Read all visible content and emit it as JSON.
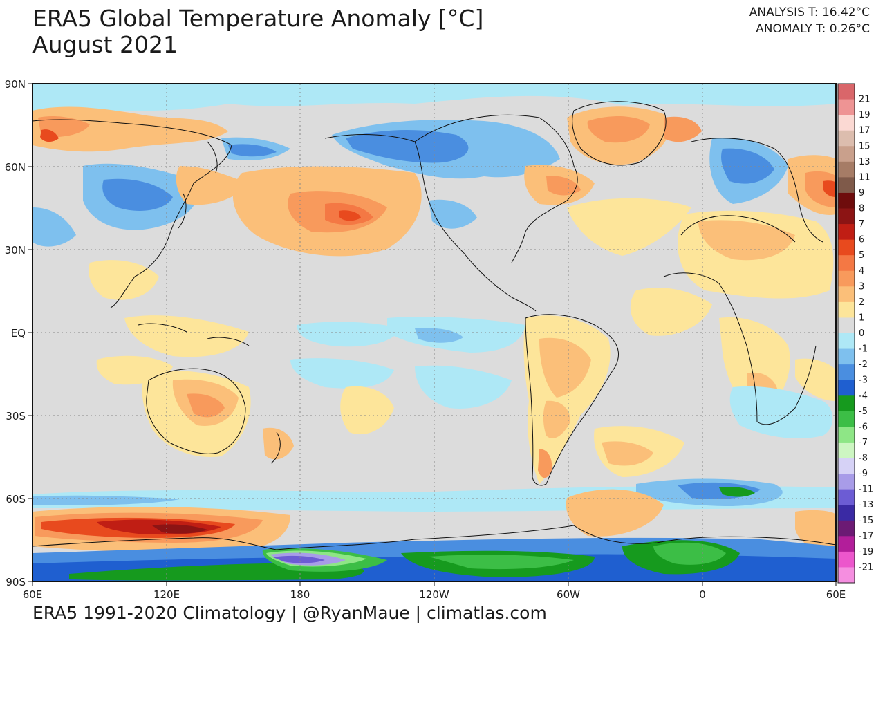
{
  "header": {
    "title_line1": "ERA5 Global Temperature Anomaly [°C]",
    "title_line2": "August 2021",
    "analysis_label": "ANALYSIS T: 16.42°C",
    "anomaly_label": "ANOMALY T: 0.26°C"
  },
  "map": {
    "latitude_labels": [
      "90N",
      "60N",
      "30N",
      "EQ",
      "30S",
      "60S",
      "90S"
    ],
    "longitude_labels": [
      "60E",
      "120E",
      "180",
      "120W",
      "60W",
      "0",
      "60E"
    ],
    "background_color": "#dcdcdc",
    "grid": "dotted",
    "central_longitude": "150W"
  },
  "colorbar": {
    "ticks": [
      {
        "label": "21",
        "color": "#d9666a"
      },
      {
        "label": "19",
        "color": "#ee9494"
      },
      {
        "label": "17",
        "color": "#fbd9d3"
      },
      {
        "label": "15",
        "color": "#dcbdae"
      },
      {
        "label": "13",
        "color": "#c9a08c"
      },
      {
        "label": "11",
        "color": "#a67c66"
      },
      {
        "label": "9",
        "color": "#7f5a4a"
      },
      {
        "label": "8",
        "color": "#6e0c0c"
      },
      {
        "label": "7",
        "color": "#8c1414"
      },
      {
        "label": "6",
        "color": "#c01e14"
      },
      {
        "label": "5",
        "color": "#e84a1e"
      },
      {
        "label": "4",
        "color": "#f47844"
      },
      {
        "label": "3",
        "color": "#f89a5c"
      },
      {
        "label": "2",
        "color": "#fbbf79"
      },
      {
        "label": "1",
        "color": "#fde59a"
      },
      {
        "label": "0",
        "color": "#dcdcdc"
      },
      {
        "label": "-1",
        "color": "#aee8f6"
      },
      {
        "label": "-2",
        "color": "#7ec0ee"
      },
      {
        "label": "-3",
        "color": "#4a8ee0"
      },
      {
        "label": "-4",
        "color": "#1f5fd0"
      },
      {
        "label": "-5",
        "color": "#169a1e"
      },
      {
        "label": "-6",
        "color": "#3cbe46"
      },
      {
        "label": "-7",
        "color": "#8ee686"
      },
      {
        "label": "-8",
        "color": "#cdf6c2"
      },
      {
        "label": "-9",
        "color": "#d6d2f6"
      },
      {
        "label": "-11",
        "color": "#a89ce8"
      },
      {
        "label": "-13",
        "color": "#6c5cd4"
      },
      {
        "label": "-15",
        "color": "#3a2aa4"
      },
      {
        "label": "-17",
        "color": "#6c1a74"
      },
      {
        "label": "-19",
        "color": "#b21e9a"
      },
      {
        "label": "-21",
        "color": "#ec56cc"
      }
    ],
    "bottom_color": "#f58ee0"
  },
  "footer": {
    "credit": "ERA5 1991-2020 Climatology | @RyanMaue | climatlas.com"
  }
}
